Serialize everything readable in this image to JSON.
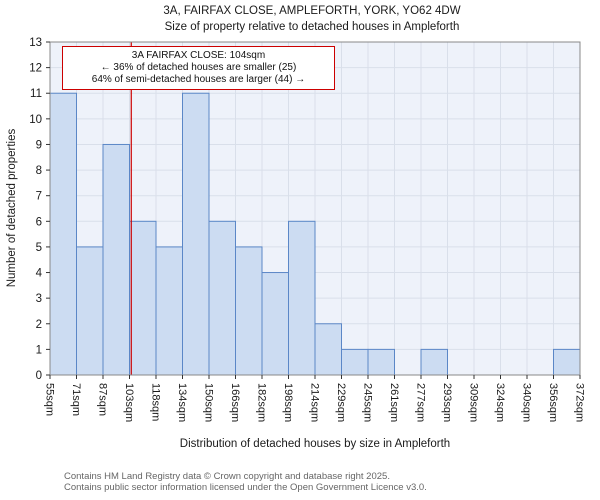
{
  "title": "3A, FAIRFAX CLOSE, AMPLEFORTH, YORK, YO62 4DW",
  "subtitle": "Size of property relative to detached houses in Ampleforth",
  "annotation": {
    "line1": "3A FAIRFAX CLOSE: 104sqm",
    "line2": "← 36% of detached houses are smaller (25)",
    "line3": "64% of semi-detached houses are larger (44) →"
  },
  "footer": {
    "line1": "Contains HM Land Registry data © Crown copyright and database right 2025.",
    "line2": "Contains public sector information licensed under the Open Government Licence v3.0."
  },
  "chart_data": {
    "type": "bar",
    "title": "3A, FAIRFAX CLOSE, AMPLEFORTH, YORK, YO62 4DW — Size of property relative to detached houses in Ampleforth",
    "xlabel": "Distribution of detached houses by size in Ampleforth",
    "ylabel": "Number of detached properties",
    "x_tick_values": [
      55,
      71,
      87,
      103,
      118,
      134,
      150,
      166,
      182,
      198,
      214,
      229,
      245,
      261,
      277,
      293,
      309,
      324,
      340,
      356,
      372
    ],
    "x_tick_labels": [
      "55sqm",
      "71sqm",
      "87sqm",
      "103sqm",
      "118sqm",
      "134sqm",
      "150sqm",
      "166sqm",
      "182sqm",
      "198sqm",
      "214sqm",
      "229sqm",
      "245sqm",
      "261sqm",
      "277sqm",
      "293sqm",
      "309sqm",
      "324sqm",
      "340sqm",
      "356sqm",
      "372sqm"
    ],
    "values": [
      11,
      5,
      9,
      6,
      5,
      11,
      6,
      5,
      4,
      6,
      2,
      1,
      1,
      0,
      1,
      0,
      0,
      0,
      0,
      1
    ],
    "ylim": [
      0,
      13
    ],
    "y_tick_step": 1,
    "grid": true,
    "legend_position": "none",
    "marker": {
      "value": 104,
      "color": "#cc0000"
    },
    "colors": {
      "bar_fill": "#ccdcf2",
      "bar_stroke": "#5b87c7",
      "plot_bg": "#eef2fa",
      "grid": "#d9dfea",
      "axis": "#888888",
      "tick": "#333333",
      "text": "#1a1a1a",
      "footer_text": "#666666"
    }
  }
}
